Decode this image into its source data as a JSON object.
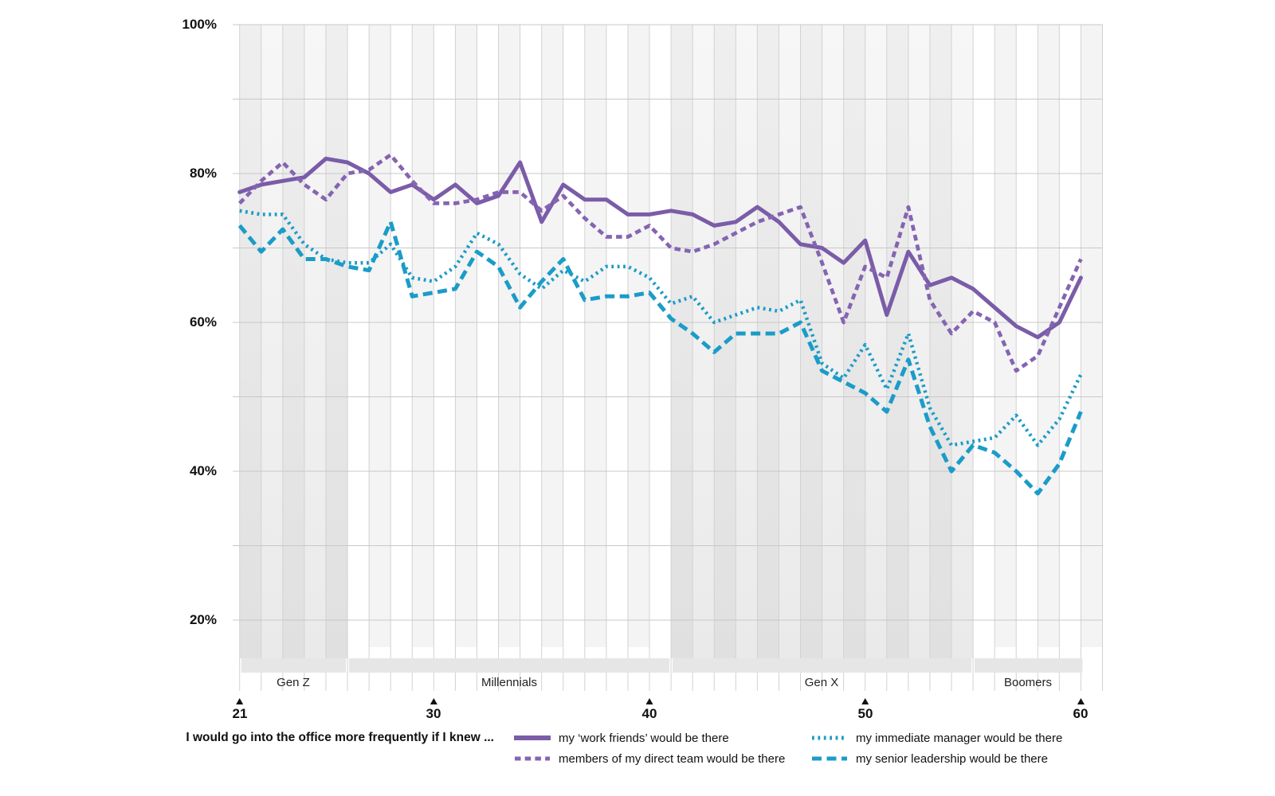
{
  "chart_data": {
    "type": "line",
    "title": "I would go into the office more frequently if I knew ...",
    "x_range": [
      21,
      60
    ],
    "x_ticks": [
      21,
      30,
      40,
      50,
      60
    ],
    "x_tick_labels": [
      "21",
      "30",
      "40",
      "50",
      "60"
    ],
    "y_tick_labels": [
      "100%",
      "80%",
      "60%",
      "40%",
      "20%"
    ],
    "y_gridlines": [
      20,
      30,
      40,
      50,
      60,
      70,
      80,
      90,
      100
    ],
    "grid": true,
    "legend_position": "bottom",
    "generations": [
      {
        "label": "Gen Z",
        "start": 21,
        "end": 25,
        "shade": "dark"
      },
      {
        "label": "Millennials",
        "start": 26,
        "end": 40,
        "shade": "light"
      },
      {
        "label": "Gen X",
        "start": 41,
        "end": 54,
        "shade": "dark"
      },
      {
        "label": "Boomers",
        "start": 55,
        "end": 60,
        "shade": "light"
      }
    ],
    "series": [
      {
        "id": "work-friends",
        "name": "my ‘work friends’ would be there",
        "line": "solid",
        "color": "#7B5CA8",
        "values": [
          77.5,
          78.5,
          79,
          79.5,
          82,
          81.5,
          80,
          77.5,
          78.5,
          76.5,
          78.5,
          76,
          77,
          81.5,
          73.5,
          78.5,
          76.5,
          76.5,
          74.5,
          74.5,
          75,
          74.5,
          73,
          73.5,
          75.5,
          73.5,
          70.5,
          70,
          68,
          71,
          61,
          69.5,
          65,
          66,
          64.5,
          62,
          59.5,
          58,
          60,
          66
        ]
      },
      {
        "id": "direct-team",
        "name": "members of my direct team would be there",
        "line": "short-dash",
        "color": "#8564B2",
        "values": [
          76,
          79,
          81.5,
          78.5,
          76.5,
          80,
          80.5,
          82.5,
          79,
          76,
          76,
          76.5,
          77.5,
          77.5,
          75,
          77,
          74,
          71.5,
          71.5,
          73,
          70,
          69.5,
          70.5,
          72,
          73.5,
          74.5,
          75.5,
          68,
          60,
          67.5,
          66,
          75.5,
          63,
          58.5,
          61.5,
          60,
          53.5,
          55.5,
          62,
          68.5
        ]
      },
      {
        "id": "immediate-manager",
        "name": "my immediate manager would be there",
        "line": "dotted",
        "color": "#1B9CC8",
        "values": [
          75,
          74.5,
          74.5,
          70.5,
          68.5,
          68,
          68,
          70.5,
          66,
          65.5,
          67.5,
          72,
          70.5,
          66.5,
          64.5,
          67,
          65.5,
          67.5,
          67.5,
          66,
          62.5,
          63.5,
          60,
          61,
          62,
          61.5,
          63,
          54.5,
          52.5,
          57,
          51,
          58.5,
          48.5,
          43.5,
          44,
          44.5,
          47.5,
          43.5,
          47,
          53
        ]
      },
      {
        "id": "senior-leadership",
        "name": "my senior leadership would be there",
        "line": "long-dash",
        "color": "#1B9CC8",
        "values": [
          73,
          69.5,
          72.5,
          68.5,
          68.5,
          67.5,
          67,
          73.5,
          63.5,
          64,
          64.5,
          69.5,
          67.5,
          62,
          65.5,
          68.5,
          63,
          63.5,
          63.5,
          64,
          60.5,
          58.5,
          56,
          58.5,
          58.5,
          58.5,
          60,
          53.5,
          52,
          50.5,
          48,
          55,
          46,
          40,
          43.5,
          42.5,
          40,
          37,
          41,
          48
        ]
      }
    ],
    "colors": {
      "purple": "#7B5CA8",
      "teal": "#1B9CC8",
      "grid_horizontal": "#c8c8c8",
      "grid_vertical": "#d2d2d2",
      "generation_band": "#e6e6e6"
    }
  }
}
